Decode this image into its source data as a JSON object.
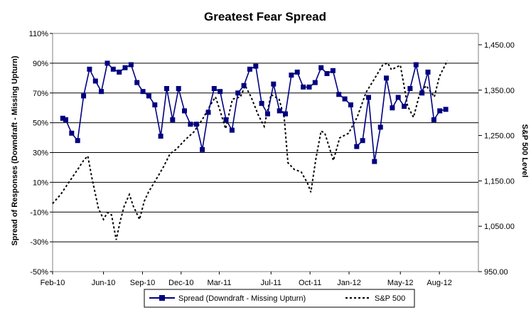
{
  "chart_data": {
    "type": "line",
    "title": "Greatest Fear Spread",
    "ylabel": "Spread of Responses (Downdraft - Missing Upturn)",
    "y2label": "S&P 500 Level",
    "xlabel": "",
    "ylim": [
      -50,
      110
    ],
    "y2lim": [
      950,
      1475
    ],
    "yticks": [
      "-50%",
      "-30%",
      "-10%",
      "10%",
      "30%",
      "50%",
      "70%",
      "90%",
      "110%"
    ],
    "y2ticks": [
      "950.00",
      "1,050.00",
      "1,150.00",
      "1,250.00",
      "1,350.00",
      "1,450.00"
    ],
    "xticks": [
      "Feb-10",
      "Jun-10",
      "Sep-10",
      "Dec-10",
      "Mar-11",
      "Jul-11",
      "Oct-11",
      "Jan-12",
      "May-12",
      "Aug-12"
    ],
    "grid": "horizontal",
    "legend_position": "bottom",
    "series": [
      {
        "name": "Spread (Downdraft - Missing Upturn)",
        "axis": "left",
        "color": "#000080",
        "marker": "square",
        "x": [
          "2010-02-25",
          "2010-03-04",
          "2010-03-18",
          "2010-04-01",
          "2010-04-15",
          "2010-04-29",
          "2010-05-13",
          "2010-05-27",
          "2010-06-10",
          "2010-06-24",
          "2010-07-08",
          "2010-07-22",
          "2010-08-05",
          "2010-08-19",
          "2010-09-02",
          "2010-09-16",
          "2010-09-30",
          "2010-10-14",
          "2010-10-28",
          "2010-11-11",
          "2010-11-25",
          "2010-12-09",
          "2010-12-23",
          "2011-01-06",
          "2011-01-20",
          "2011-02-03",
          "2011-02-17",
          "2011-03-03",
          "2011-03-17",
          "2011-03-31",
          "2011-04-14",
          "2011-04-28",
          "2011-05-12",
          "2011-05-26",
          "2011-06-09",
          "2011-06-23",
          "2011-07-07",
          "2011-07-21",
          "2011-08-04",
          "2011-08-18",
          "2011-09-01",
          "2011-09-15",
          "2011-09-29",
          "2011-10-13",
          "2011-10-27",
          "2011-11-10",
          "2011-11-24",
          "2011-12-08",
          "2011-12-22",
          "2012-01-05",
          "2012-01-19",
          "2012-02-02",
          "2012-02-16",
          "2012-03-01",
          "2012-03-15",
          "2012-03-29",
          "2012-04-12",
          "2012-04-26",
          "2012-05-10",
          "2012-05-24",
          "2012-06-07",
          "2012-06-21",
          "2012-07-05",
          "2012-07-19",
          "2012-08-02",
          "2012-08-16"
        ],
        "values": [
          53,
          52,
          43,
          38,
          68,
          86,
          78,
          71,
          90,
          86,
          84,
          87,
          89,
          77,
          71,
          68,
          62,
          41,
          73,
          52,
          73,
          58,
          49,
          49,
          32,
          57,
          73,
          71,
          52,
          45,
          70,
          75,
          86,
          88,
          63,
          56,
          76,
          58,
          56,
          82,
          84,
          74,
          74,
          77,
          87,
          83,
          85,
          69,
          66,
          62,
          34,
          38,
          67,
          24,
          47,
          80,
          60,
          67,
          61,
          73,
          89,
          70,
          84,
          52,
          58,
          59
        ]
      },
      {
        "name": "S&P 500",
        "axis": "right",
        "color": "#000000",
        "style": "dotted",
        "x": [
          "2010-02-01",
          "2010-02-20",
          "2010-03-10",
          "2010-04-01",
          "2010-04-15",
          "2010-04-25",
          "2010-05-05",
          "2010-05-20",
          "2010-06-01",
          "2010-06-10",
          "2010-06-20",
          "2010-07-01",
          "2010-07-10",
          "2010-07-20",
          "2010-08-01",
          "2010-08-10",
          "2010-08-25",
          "2010-09-05",
          "2010-09-15",
          "2010-10-01",
          "2010-10-20",
          "2010-11-05",
          "2010-11-20",
          "2010-12-10",
          "2010-12-31",
          "2011-01-20",
          "2011-02-10",
          "2011-02-20",
          "2011-03-01",
          "2011-03-16",
          "2011-04-01",
          "2011-04-20",
          "2011-05-01",
          "2011-05-15",
          "2011-06-01",
          "2011-06-15",
          "2011-07-01",
          "2011-07-20",
          "2011-08-01",
          "2011-08-10",
          "2011-08-25",
          "2011-09-10",
          "2011-09-25",
          "2011-10-03",
          "2011-10-15",
          "2011-10-27",
          "2011-11-05",
          "2011-11-25",
          "2011-12-10",
          "2011-12-31",
          "2012-01-20",
          "2012-02-10",
          "2012-03-01",
          "2012-03-20",
          "2012-04-01",
          "2012-04-10",
          "2012-05-01",
          "2012-05-18",
          "2012-06-01",
          "2012-06-15",
          "2012-07-01",
          "2012-07-20",
          "2012-08-01",
          "2012-08-20"
        ],
        "values": [
          1100,
          1120,
          1145,
          1175,
          1195,
          1205,
          1155,
          1090,
          1065,
          1080,
          1075,
          1020,
          1060,
          1095,
          1120,
          1095,
          1065,
          1105,
          1125,
          1150,
          1180,
          1210,
          1220,
          1240,
          1258,
          1285,
          1320,
          1335,
          1310,
          1265,
          1330,
          1335,
          1360,
          1335,
          1295,
          1270,
          1340,
          1330,
          1290,
          1190,
          1175,
          1170,
          1145,
          1125,
          1200,
          1260,
          1255,
          1195,
          1245,
          1255,
          1290,
          1345,
          1375,
          1405,
          1410,
          1395,
          1405,
          1315,
          1290,
          1340,
          1360,
          1335,
          1380,
          1415
        ]
      }
    ]
  }
}
